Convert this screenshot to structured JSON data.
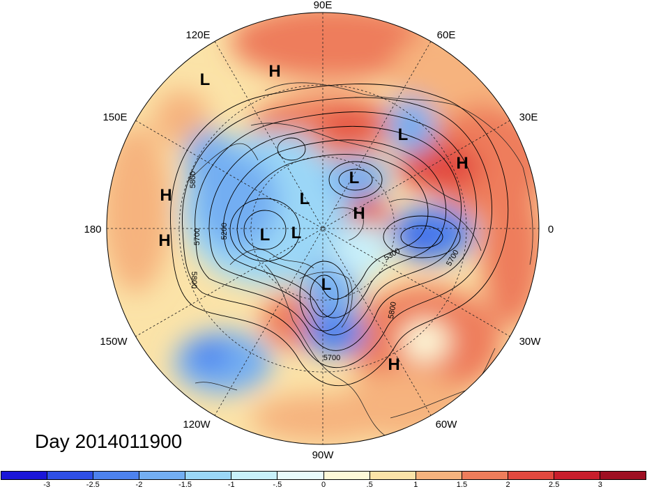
{
  "title": "Day 2014011900",
  "longitude_labels": [
    "90E",
    "60E",
    "30E",
    "0",
    "30W",
    "60W",
    "90W",
    "120W",
    "150W",
    "180",
    "150E",
    "120E"
  ],
  "pressure_centers": [
    {
      "label": "L"
    },
    {
      "label": "H"
    },
    {
      "label": "L"
    },
    {
      "label": "H"
    },
    {
      "label": "L"
    },
    {
      "label": "L"
    },
    {
      "label": "H"
    },
    {
      "label": "H"
    },
    {
      "label": "H"
    },
    {
      "label": "L"
    },
    {
      "label": "L"
    },
    {
      "label": "L"
    },
    {
      "label": "H"
    }
  ],
  "contour_labels": [
    "5800",
    "5700",
    "5200",
    "5800",
    "5300",
    "5700",
    "5800",
    "5700"
  ],
  "colorbar": {
    "tick_labels": [
      "-3",
      "-2.5",
      "-2",
      "-1.5",
      "-1",
      "-.5",
      "0",
      ".5",
      "1",
      "1.5",
      "2",
      "2.5",
      "3"
    ],
    "colors": [
      "#1b16d8",
      "#2e4fe6",
      "#4d82ee",
      "#73aef2",
      "#9bd7f7",
      "#c8f0fa",
      "#e9fbfc",
      "#fdf8d8",
      "#fbe3a8",
      "#f6b37e",
      "#ee7d5b",
      "#e2493f",
      "#c81e2c",
      "#9e0f22"
    ]
  }
}
